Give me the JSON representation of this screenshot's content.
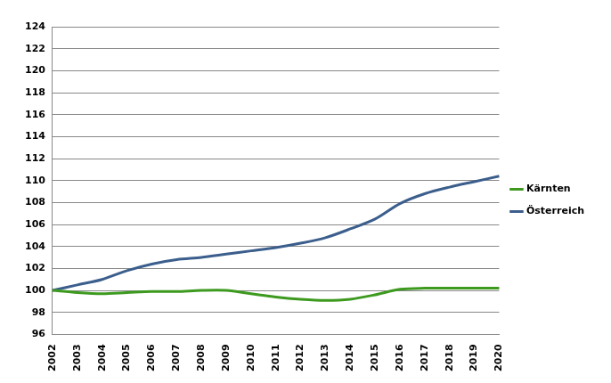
{
  "chart_data": {
    "type": "line",
    "categories": [
      "2002",
      "2003",
      "2004",
      "2005",
      "2006",
      "2007",
      "2008",
      "2009",
      "2010",
      "2011",
      "2012",
      "2013",
      "2014",
      "2015",
      "2016",
      "2017",
      "2018",
      "2019",
      "2020"
    ],
    "series": [
      {
        "name": "Kärnten",
        "color": "#3d9a1f",
        "values": [
          100,
          99.8,
          99.7,
          99.8,
          99.9,
          99.9,
          100.0,
          100.0,
          99.7,
          99.4,
          99.2,
          99.1,
          99.2,
          99.6,
          100.1,
          100.2,
          100.2,
          100.2,
          100.2
        ]
      },
      {
        "name": "Österreich",
        "color": "#3b5e8c",
        "values": [
          100,
          100.5,
          101.0,
          101.8,
          102.4,
          102.8,
          103.0,
          103.3,
          103.6,
          103.9,
          104.3,
          104.8,
          105.6,
          106.5,
          107.9,
          108.8,
          109.4,
          109.9,
          110.4
        ]
      }
    ],
    "ylim": [
      96,
      124
    ],
    "yticks": [
      96,
      98,
      100,
      102,
      104,
      106,
      108,
      110,
      112,
      114,
      116,
      118,
      120,
      122,
      124
    ],
    "grid": true,
    "legend": "right"
  }
}
